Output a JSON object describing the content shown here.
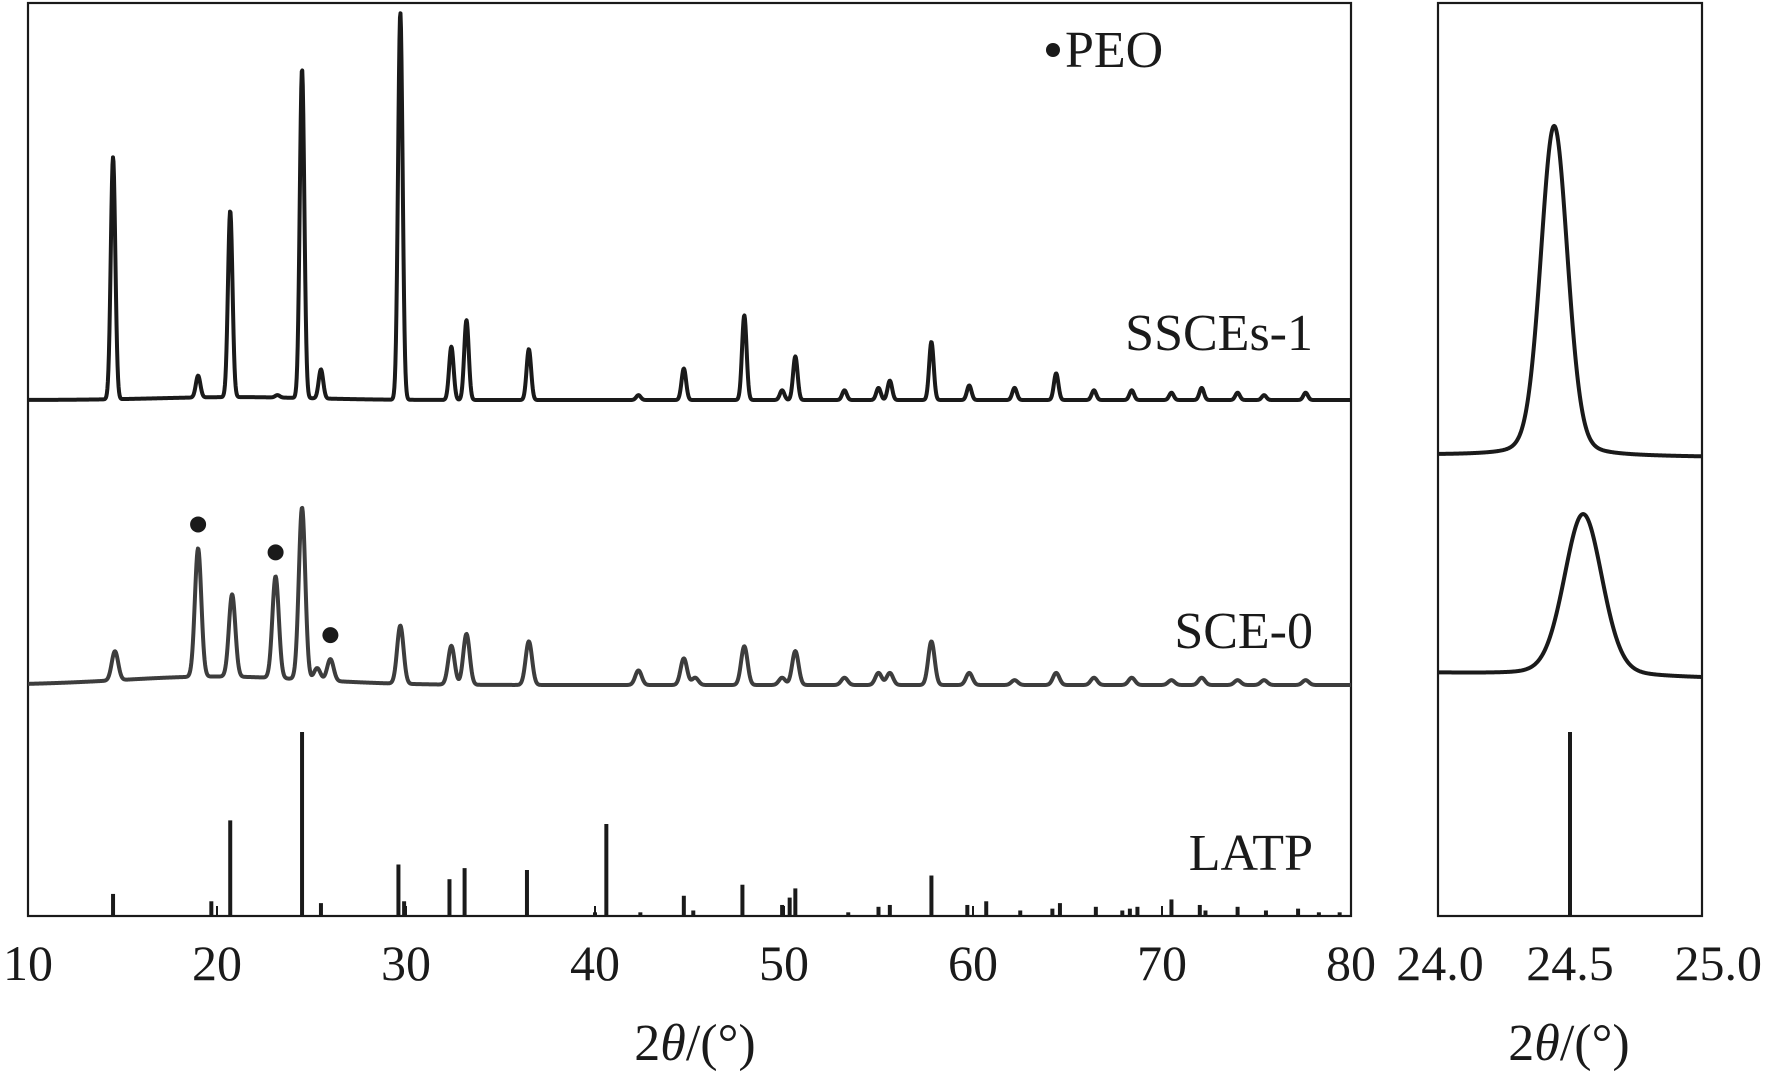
{
  "chart_data": [
    {
      "id": "main",
      "type": "line",
      "xlabel_prefix": "2",
      "xlabel_theta": "θ",
      "xlabel_suffix": "/(°)",
      "xlim": [
        10,
        80
      ],
      "xticks": [
        10,
        20,
        30,
        40,
        50,
        60,
        70,
        80
      ],
      "yaxis": "stacked intensity (arbitrary units, no ticks)",
      "legend": {
        "marker": "filled-circle",
        "label": "PEO",
        "position": "top-right"
      },
      "series": [
        {
          "name": "SSCEs-1",
          "color": "#1a1a1a",
          "peaks": [
            [
              14.5,
              100
            ],
            [
              19.0,
              9
            ],
            [
              20.7,
              77
            ],
            [
              23.2,
              1
            ],
            [
              24.5,
              136
            ],
            [
              25.5,
              12
            ],
            [
              29.7,
              160
            ],
            [
              32.4,
              22
            ],
            [
              33.2,
              33
            ],
            [
              36.5,
              21
            ],
            [
              42.3,
              2
            ],
            [
              44.7,
              13
            ],
            [
              47.9,
              35
            ],
            [
              49.9,
              4
            ],
            [
              50.6,
              18
            ],
            [
              53.2,
              4
            ],
            [
              55.0,
              5
            ],
            [
              55.6,
              8
            ],
            [
              57.8,
              24
            ],
            [
              59.8,
              6
            ],
            [
              62.2,
              5
            ],
            [
              64.4,
              11
            ],
            [
              66.4,
              4
            ],
            [
              68.4,
              4
            ],
            [
              70.5,
              3
            ],
            [
              72.1,
              5
            ],
            [
              74.0,
              3
            ],
            [
              75.4,
              2
            ],
            [
              77.6,
              3
            ]
          ]
        },
        {
          "name": "SCE-0",
          "color": "#3d3d3d",
          "peaks": [
            [
              14.6,
              12
            ],
            [
              19.0,
              53
            ],
            [
              20.8,
              34
            ],
            [
              23.1,
              42
            ],
            [
              24.5,
              71
            ],
            [
              25.3,
              5
            ],
            [
              26.0,
              9
            ],
            [
              29.7,
              24
            ],
            [
              32.4,
              16
            ],
            [
              33.2,
              21
            ],
            [
              36.5,
              18
            ],
            [
              42.3,
              6
            ],
            [
              44.7,
              11
            ],
            [
              45.3,
              3
            ],
            [
              47.9,
              16
            ],
            [
              49.9,
              3
            ],
            [
              50.6,
              14
            ],
            [
              53.2,
              3
            ],
            [
              55.0,
              5
            ],
            [
              55.6,
              5
            ],
            [
              57.8,
              18
            ],
            [
              59.8,
              5
            ],
            [
              62.2,
              2
            ],
            [
              64.4,
              5
            ],
            [
              66.4,
              3
            ],
            [
              68.4,
              3
            ],
            [
              70.5,
              2
            ],
            [
              72.1,
              3
            ],
            [
              74.0,
              2
            ],
            [
              75.4,
              2
            ],
            [
              77.6,
              2
            ]
          ],
          "peo_marked_peaks": [
            19.0,
            23.1,
            26.0
          ]
        },
        {
          "name": "LATP",
          "color": "#1a1a1a",
          "sticks": [
            [
              14.5,
              12
            ],
            [
              19.7,
              8
            ],
            [
              20.7,
              52
            ],
            [
              24.5,
              100
            ],
            [
              25.5,
              7
            ],
            [
              29.6,
              28
            ],
            [
              29.9,
              8
            ],
            [
              32.3,
              20
            ],
            [
              33.1,
              26
            ],
            [
              36.4,
              25
            ],
            [
              40.0,
              2
            ],
            [
              40.6,
              50
            ],
            [
              42.4,
              2
            ],
            [
              44.7,
              11
            ],
            [
              45.2,
              3
            ],
            [
              47.8,
              17
            ],
            [
              49.9,
              6
            ],
            [
              50.3,
              10
            ],
            [
              50.6,
              15
            ],
            [
              53.4,
              2
            ],
            [
              55.0,
              5
            ],
            [
              55.6,
              6
            ],
            [
              57.8,
              22
            ],
            [
              59.7,
              6
            ],
            [
              60.7,
              8
            ],
            [
              62.5,
              3
            ],
            [
              64.2,
              4
            ],
            [
              64.6,
              7
            ],
            [
              66.5,
              5
            ],
            [
              67.9,
              3
            ],
            [
              68.3,
              4
            ],
            [
              68.7,
              5
            ],
            [
              70.5,
              9
            ],
            [
              72.0,
              6
            ],
            [
              72.3,
              3
            ],
            [
              74.0,
              5
            ],
            [
              75.5,
              3
            ],
            [
              77.2,
              4
            ],
            [
              78.3,
              2
            ],
            [
              79.4,
              2
            ]
          ]
        }
      ],
      "series_labels": [
        {
          "text": "SSCEs-1"
        },
        {
          "text": "SCE-0"
        },
        {
          "text": "LATP"
        }
      ]
    },
    {
      "id": "zoom",
      "type": "line",
      "xlabel_prefix": "2",
      "xlabel_theta": "θ",
      "xlabel_suffix": "/(°)",
      "xlim": [
        24.0,
        25.0
      ],
      "xticks": [
        "24.0",
        "24.5",
        "25.0"
      ],
      "series": [
        {
          "name": "SSCEs-1",
          "peak_center": 24.44,
          "fwhm": 0.12,
          "height": 100,
          "color": "#1a1a1a"
        },
        {
          "name": "SCE-0",
          "peak_center": 24.55,
          "fwhm": 0.17,
          "height": 49,
          "color": "#1a1a1a"
        },
        {
          "name": "LATP",
          "sticks": [
            [
              24.15,
              0.5
            ],
            [
              24.31,
              0.5
            ],
            [
              24.38,
              0.5
            ],
            [
              24.5,
              100
            ]
          ],
          "color": "#1a1a1a"
        }
      ]
    }
  ]
}
